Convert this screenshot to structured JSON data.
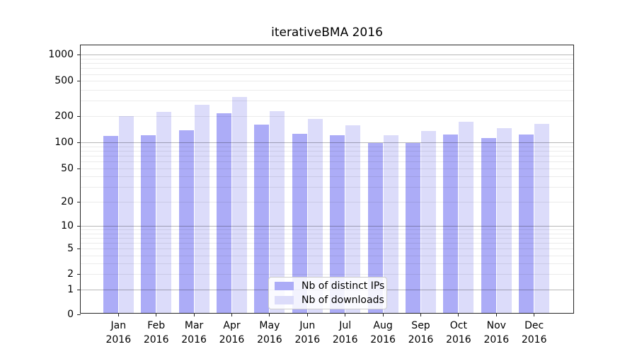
{
  "title": "iterativeBMA 2016",
  "chart_data": {
    "type": "bar",
    "title": "iterativeBMA 2016",
    "x_categories": [
      "Jan",
      "Feb",
      "Mar",
      "Apr",
      "May",
      "Jun",
      "Jul",
      "Aug",
      "Sep",
      "Oct",
      "Nov",
      "Dec"
    ],
    "x_year": "2016",
    "series": [
      {
        "name": "Nb of distinct IPs",
        "color": "#acacf7",
        "values": [
          115,
          117,
          133,
          208,
          155,
          121,
          117,
          95,
          95,
          119,
          108,
          118
        ]
      },
      {
        "name": "Nb of downloads",
        "color": "#dcdcfa",
        "values": [
          191,
          214,
          259,
          316,
          219,
          178,
          150,
          116,
          130,
          165,
          141,
          158
        ]
      }
    ],
    "y_ticks": [
      0,
      1,
      2,
      5,
      10,
      20,
      50,
      100,
      200,
      500,
      1000
    ],
    "y_scale": "log1p",
    "ylim": [
      0,
      1300
    ],
    "grid": "horizontal major at 1,10,100,1000 with faint log minors",
    "legend_position": "lower center",
    "xlabel": "",
    "ylabel": ""
  }
}
